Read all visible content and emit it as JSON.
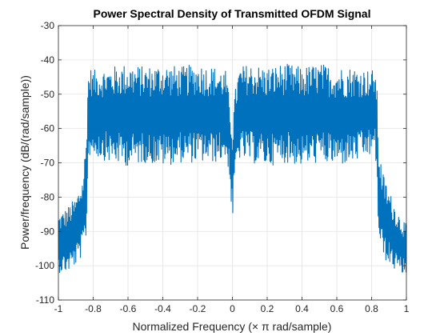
{
  "chart_data": {
    "type": "line",
    "title": "Power Spectral Density of Transmitted OFDM Signal",
    "xlabel": "Normalized  Frequency (× π rad/sample)",
    "ylabel": "Power/frequency (dB/(rad/sample))",
    "xlim": [
      -1,
      1
    ],
    "ylim": [
      -110,
      -30
    ],
    "xticks": [
      -1,
      -0.8,
      -0.6,
      -0.4,
      -0.2,
      0,
      0.2,
      0.4,
      0.6,
      0.8,
      1
    ],
    "xtick_labels": [
      "-1",
      "-0.8",
      "-0.6",
      "-0.4",
      "-0.2",
      "0",
      "0.2",
      "0.4",
      "0.6",
      "0.8",
      "1"
    ],
    "yticks": [
      -110,
      -100,
      -90,
      -80,
      -70,
      -60,
      -50,
      -40,
      -30
    ],
    "ytick_labels": [
      "-110",
      "-100",
      "-90",
      "-80",
      "-70",
      "-60",
      "-50",
      "-40",
      "-30"
    ],
    "grid": true,
    "series_color": "#0072BD",
    "series": [
      {
        "name": "",
        "x": [
          -1,
          -0.95,
          -0.9,
          -0.86,
          -0.84,
          -0.83,
          -0.82,
          -0.8,
          -0.7,
          -0.6,
          -0.5,
          -0.4,
          -0.3,
          -0.2,
          -0.1,
          -0.04,
          -0.02,
          0,
          0.02,
          0.04,
          0.1,
          0.2,
          0.3,
          0.4,
          0.5,
          0.6,
          0.7,
          0.8,
          0.82,
          0.83,
          0.84,
          0.86,
          0.9,
          0.95,
          1
        ],
        "upper": [
          -85,
          -83,
          -80,
          -74,
          -62,
          -44,
          -42,
          -43,
          -42,
          -41,
          -42,
          -41,
          -42,
          -41,
          -42,
          -43,
          -50,
          -58,
          -47,
          -42,
          -41,
          -42,
          -41,
          -42,
          -41,
          -42,
          -42,
          -43,
          -42,
          -47,
          -64,
          -72,
          -78,
          -84,
          -88
        ],
        "lower": [
          -102,
          -102,
          -100,
          -97,
          -92,
          -72,
          -68,
          -68,
          -70,
          -71,
          -70,
          -71,
          -70,
          -70,
          -70,
          -69,
          -72,
          -88,
          -72,
          -69,
          -70,
          -71,
          -70,
          -71,
          -70,
          -71,
          -70,
          -68,
          -68,
          -73,
          -92,
          -97,
          -100,
          -102,
          -103
        ]
      }
    ]
  }
}
